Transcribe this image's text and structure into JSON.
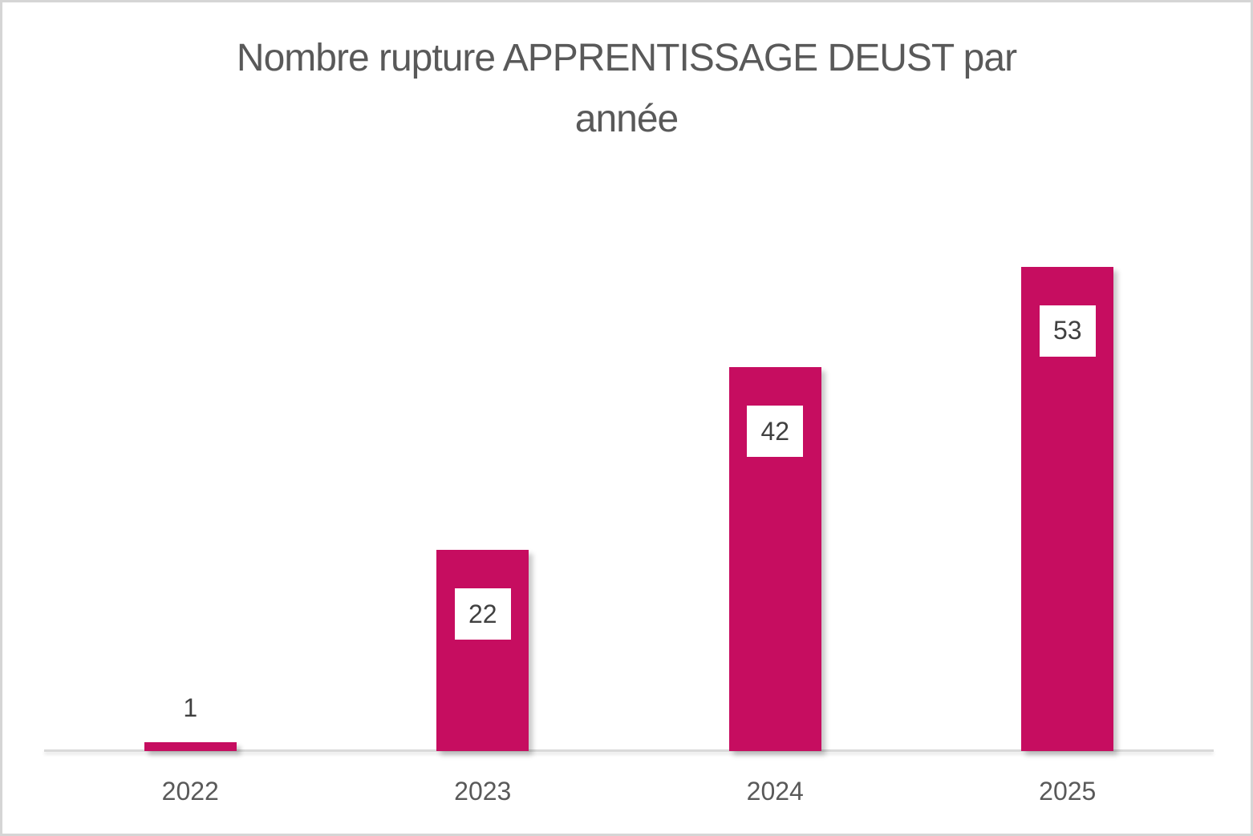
{
  "chart_data": {
    "type": "bar",
    "title": "Nombre rupture APPRENTISSAGE DEUST par année",
    "title_lines": [
      "Nombre rupture APPRENTISSAGE DEUST par",
      "année"
    ],
    "categories": [
      "2022",
      "2023",
      "2024",
      "2025"
    ],
    "values": [
      1,
      22,
      42,
      53
    ],
    "data_labels": [
      "1",
      "22",
      "42",
      "53"
    ],
    "xlabel": "",
    "ylabel": "",
    "ylim": [
      0,
      60
    ],
    "grid": false,
    "legend": false,
    "y_axis_visible": false,
    "colors": {
      "bar_fill": "#C60D60",
      "title_text": "#595959",
      "category_label_text": "#595959",
      "data_label_text": "#404040",
      "data_label_background": "#FFFFFF",
      "axis_line": "#D9D9D9",
      "chart_background": "#FFFFFF",
      "chart_border": "#D5D5D5"
    }
  }
}
